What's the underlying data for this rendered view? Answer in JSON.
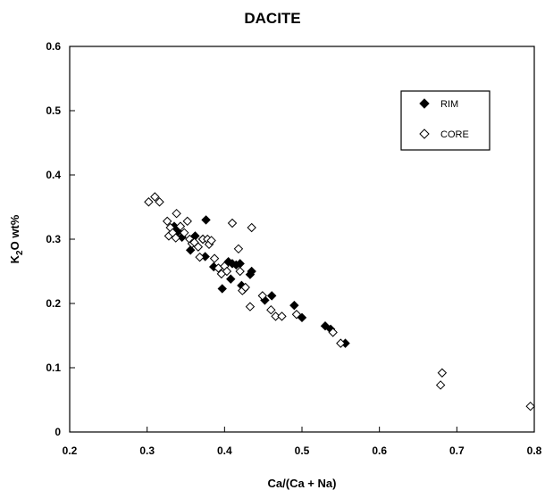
{
  "chart_data": {
    "type": "scatter",
    "title": "DACITE",
    "xlabel": "Ca/(Ca + Na)",
    "ylabel_parts": [
      "K",
      "2",
      "O  wt%"
    ],
    "xlim": [
      0.2,
      0.8
    ],
    "ylim": [
      0,
      0.6
    ],
    "xticks": [
      "0.2",
      "0.3",
      "0.4",
      "0.5",
      "0.6",
      "0.7",
      "0.8"
    ],
    "yticks": [
      "0",
      "0.1",
      "0.2",
      "0.3",
      "0.4",
      "0.5",
      "0.6"
    ],
    "grid": false,
    "legend": {
      "position": "top-right",
      "entries": [
        "RIM",
        "CORE"
      ]
    },
    "series": [
      {
        "name": "RIM",
        "marker": "filled-diamond",
        "color": "#000000",
        "points": [
          [
            0.335,
            0.32
          ],
          [
            0.34,
            0.312
          ],
          [
            0.345,
            0.303
          ],
          [
            0.356,
            0.283
          ],
          [
            0.362,
            0.305
          ],
          [
            0.372,
            0.3
          ],
          [
            0.375,
            0.273
          ],
          [
            0.376,
            0.33
          ],
          [
            0.386,
            0.257
          ],
          [
            0.397,
            0.223
          ],
          [
            0.405,
            0.265
          ],
          [
            0.408,
            0.238
          ],
          [
            0.41,
            0.262
          ],
          [
            0.415,
            0.26
          ],
          [
            0.42,
            0.262
          ],
          [
            0.422,
            0.228
          ],
          [
            0.425,
            0.222
          ],
          [
            0.433,
            0.245
          ],
          [
            0.435,
            0.25
          ],
          [
            0.452,
            0.205
          ],
          [
            0.461,
            0.212
          ],
          [
            0.49,
            0.197
          ],
          [
            0.5,
            0.178
          ],
          [
            0.53,
            0.165
          ],
          [
            0.537,
            0.16
          ],
          [
            0.556,
            0.138
          ]
        ]
      },
      {
        "name": "CORE",
        "marker": "open-diamond",
        "color": "#000000",
        "points": [
          [
            0.302,
            0.358
          ],
          [
            0.31,
            0.366
          ],
          [
            0.316,
            0.358
          ],
          [
            0.326,
            0.328
          ],
          [
            0.328,
            0.305
          ],
          [
            0.33,
            0.318
          ],
          [
            0.333,
            0.31
          ],
          [
            0.337,
            0.302
          ],
          [
            0.338,
            0.34
          ],
          [
            0.343,
            0.32
          ],
          [
            0.348,
            0.31
          ],
          [
            0.352,
            0.328
          ],
          [
            0.355,
            0.3
          ],
          [
            0.358,
            0.293
          ],
          [
            0.361,
            0.295
          ],
          [
            0.366,
            0.288
          ],
          [
            0.368,
            0.272
          ],
          [
            0.372,
            0.3
          ],
          [
            0.378,
            0.3
          ],
          [
            0.38,
            0.292
          ],
          [
            0.383,
            0.298
          ],
          [
            0.387,
            0.27
          ],
          [
            0.392,
            0.255
          ],
          [
            0.396,
            0.246
          ],
          [
            0.4,
            0.258
          ],
          [
            0.403,
            0.25
          ],
          [
            0.41,
            0.325
          ],
          [
            0.418,
            0.285
          ],
          [
            0.42,
            0.25
          ],
          [
            0.423,
            0.22
          ],
          [
            0.427,
            0.225
          ],
          [
            0.433,
            0.195
          ],
          [
            0.435,
            0.318
          ],
          [
            0.449,
            0.212
          ],
          [
            0.46,
            0.19
          ],
          [
            0.466,
            0.18
          ],
          [
            0.474,
            0.18
          ],
          [
            0.493,
            0.183
          ],
          [
            0.54,
            0.155
          ],
          [
            0.55,
            0.138
          ],
          [
            0.679,
            0.073
          ],
          [
            0.681,
            0.092
          ],
          [
            0.795,
            0.04
          ]
        ]
      }
    ]
  }
}
